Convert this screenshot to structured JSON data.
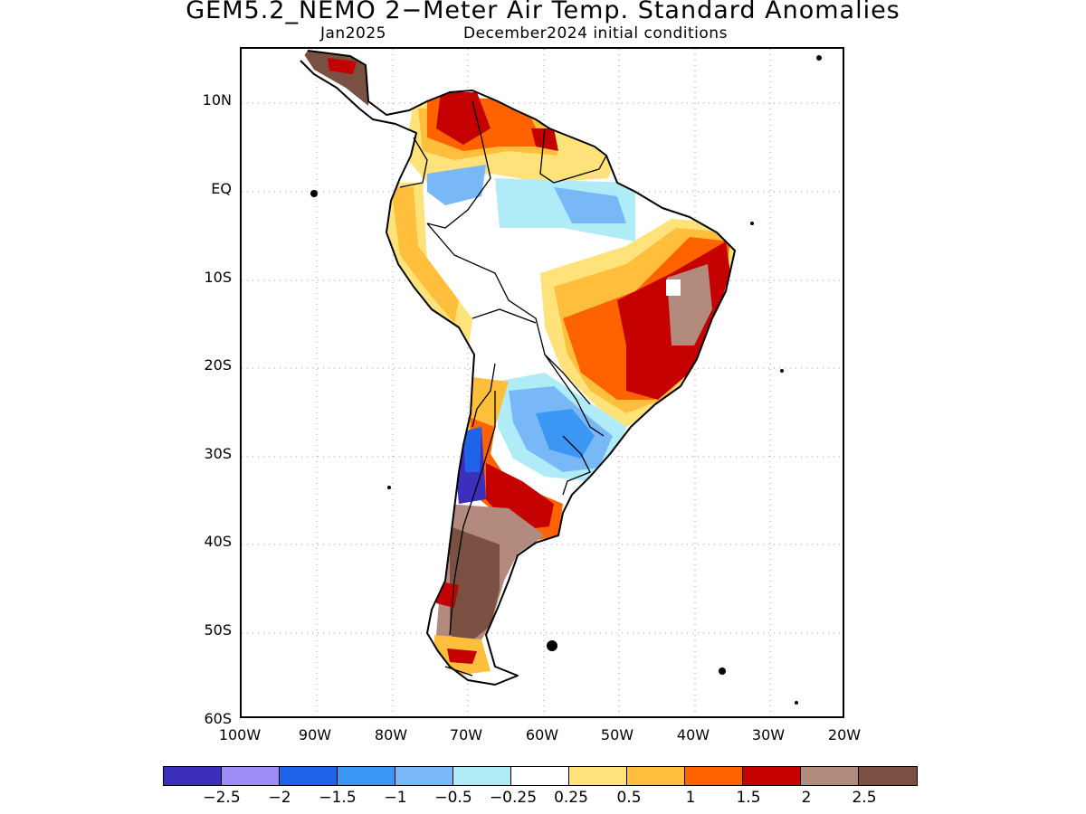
{
  "header": {
    "title": "GEM5.2_NEMO 2−Meter Air Temp. Standard Anomalies",
    "valid_month": "Jan2025",
    "init": "December2024 initial conditions"
  },
  "axes": {
    "lat_labels": [
      "10N",
      "EQ",
      "10S",
      "20S",
      "30S",
      "40S",
      "50S",
      "60S"
    ],
    "lon_labels": [
      "100W",
      "90W",
      "80W",
      "70W",
      "60W",
      "50W",
      "40W",
      "30W",
      "20W"
    ]
  },
  "colorbar": {
    "colors": [
      "#3b2fbc",
      "#9d8cf5",
      "#1f64e8",
      "#3c96f4",
      "#78b8f7",
      "#b0ecf7",
      "#ffffff",
      "#ffe27a",
      "#ffbf3c",
      "#ff6300",
      "#c40000",
      "#b38a7e",
      "#7a5043"
    ],
    "labels": [
      "−2.5",
      "−2",
      "−1.5",
      "−1",
      "−0.5",
      "−0.25",
      "0.25",
      "0.5",
      "1",
      "1.5",
      "2",
      "2.5"
    ]
  }
}
